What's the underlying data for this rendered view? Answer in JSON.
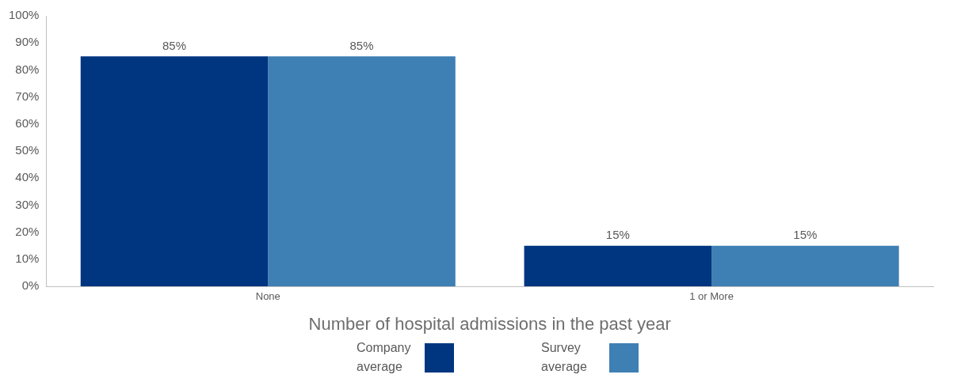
{
  "chart_data": {
    "type": "bar",
    "xlabel": "Number of hospital admissions in the past year",
    "categories": [
      "None",
      "1 or More"
    ],
    "series": [
      {
        "name": "Company average",
        "color": "#003580",
        "values": [
          85,
          15
        ],
        "value_labels": [
          "85%",
          "15%"
        ]
      },
      {
        "name": "Survey average",
        "color": "#3e7fb4",
        "values": [
          85,
          15
        ],
        "value_labels": [
          "85%",
          "15%"
        ]
      }
    ],
    "ylim": [
      0,
      100
    ],
    "yticks": [
      {
        "value": 0,
        "label": "0%"
      },
      {
        "value": 10,
        "label": "10%"
      },
      {
        "value": 20,
        "label": "20%"
      },
      {
        "value": 30,
        "label": "30%"
      },
      {
        "value": 40,
        "label": "40%"
      },
      {
        "value": 50,
        "label": "50%"
      },
      {
        "value": 60,
        "label": "60%"
      },
      {
        "value": 70,
        "label": "70%"
      },
      {
        "value": 80,
        "label": "80%"
      },
      {
        "value": 90,
        "label": "90%"
      },
      {
        "value": 100,
        "label": "100%"
      }
    ],
    "grid": false,
    "legend": "bottom"
  }
}
